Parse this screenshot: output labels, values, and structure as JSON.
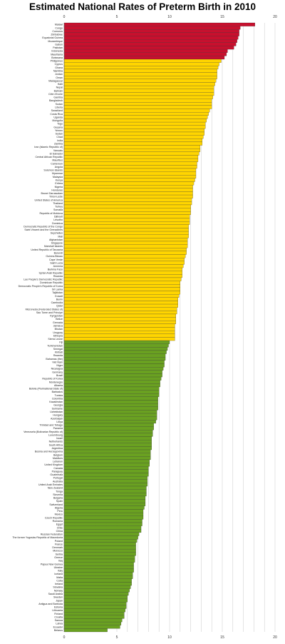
{
  "chart_data": {
    "type": "bar",
    "orientation": "horizontal",
    "title": "Estimated National Rates of Preterm Birth in 2010",
    "xlim": [
      0,
      20
    ],
    "xticks": [
      0,
      5,
      10,
      15,
      20
    ],
    "grid": true,
    "colors": {
      "high": "#c8102e",
      "medium": "#ffd500",
      "low": "#6aa121"
    },
    "categories": [
      "Malawi",
      "Congo",
      "Comoros",
      "Zimbabwe",
      "Equatorial Guinea",
      "Mozambique",
      "Gabon",
      "Pakistan",
      "Indonesia",
      "Mauritania",
      "Botswana",
      "Philippines",
      "Cyprus",
      "Ghana",
      "Namibia",
      "Jordan",
      "Oman",
      "Madagascar",
      "Haiti",
      "Nepal",
      "Bahrain",
      "Côte d'Ivoire",
      "Gambia",
      "Bangladesh",
      "Sudan",
      "Liberia",
      "Swaziland",
      "Costa Rica",
      "Uganda",
      "Mongolia",
      "Togo",
      "Guyana",
      "Yemen",
      "Sudan",
      "Chad",
      "India",
      "Zambia",
      "Iran (Islamic Republic of)",
      "Vanuatu",
      "El Salvador",
      "Central African Republic",
      "Mauritius",
      "Cameroon",
      "Angola",
      "Solomon Islands",
      "Myanmar",
      "Malaysia",
      "Kenya",
      "Eritrea",
      "Nigeria",
      "Honduras",
      "Brunei Darussalam",
      "Timor-Leste",
      "United States of America",
      "Thailand",
      "Turkey",
      "Somalia",
      "Republic of Moldova",
      "Djibouti",
      "Lesotho",
      "Dominica",
      "Democratic Republic of the Congo",
      "Saint Vincent and the Grenadines",
      "Seychelles",
      "Mali",
      "Afghanistan",
      "Singapore",
      "Marshall Islands",
      "United Republic of Tanzania",
      "Burundi",
      "Guinea-Bissau",
      "Cape Verde",
      "Saint Lucia",
      "Armenia",
      "Burkina Faso",
      "Syrian Arab Republic",
      "Rwanda",
      "Lao People's Democratic Republic",
      "Dominican Republic",
      "Democratic People's Republic of Korea",
      "Sri Lanka",
      "Tajikistan",
      "Kuwait",
      "Benin",
      "Cambodia",
      "Qatar",
      "Micronesia (Federated States of)",
      "Sao Tome and Principe",
      "Kyrgyzstan",
      "Belize",
      "Grenada",
      "Jamaica",
      "Bhutan",
      "Uruguay",
      "Ethiopia",
      "Sierra Leone",
      "Fiji",
      "Turkmenistan",
      "Senegal",
      "Kiribati",
      "Rwanda",
      "Bahamas (the)",
      "Viet Nam",
      "Niger",
      "Nicaragua",
      "Germany",
      "Brazil",
      "Republic of Korea",
      "Montenegro",
      "Albania",
      "Bolivia (Plurinational State of)",
      "Barbados",
      "Tunisia",
      "Colombia",
      "Kazakhstan",
      "Georgia",
      "Suriname",
      "Uzbekistan",
      "Hungary",
      "Azerbaijan",
      "Libya",
      "Trinidad and Tobago",
      "Panama",
      "Venezuela (Bolivarian Republic of)",
      "Luxembourg",
      "Israel",
      "Netherlands",
      "South Africa",
      "Argentina",
      "Bosnia and Herzegovina",
      "Belgium",
      "Maldives",
      "Lebanon",
      "United Kingdom",
      "Canada",
      "Paraguay",
      "Guatemala",
      "Portugal",
      "Australia",
      "United Arab Emirates",
      "New Zealand",
      "Tonga",
      "Slovenia",
      "Bulgaria",
      "Spain",
      "Switzerland",
      "Algeria",
      "Peru",
      "Mexico",
      "Czech Republic",
      "Romania",
      "Egypt",
      "Chile",
      "China",
      "Russian Federation",
      "The former Yugoslav Republic of Macedonia",
      "Poland",
      "France",
      "Denmark",
      "Morocco",
      "Serbia",
      "Greece",
      "Iraq",
      "Papua New Guinea",
      "Ukraine",
      "Italy",
      "Iceland",
      "Malta",
      "Cuba",
      "Ireland",
      "Slovakia",
      "Norway",
      "Saudi Arabia",
      "Sweden",
      "Japan",
      "Antigua and Barbuda",
      "Estonia",
      "Lithuania",
      "Finland",
      "Croatia",
      "Samoa",
      "Latvia",
      "Ecuador",
      "Belarus"
    ],
    "values": [
      18.1,
      16.7,
      16.6,
      16.6,
      16.5,
      16.4,
      16.3,
      16.1,
      15.5,
      15.4,
      15.2,
      14.9,
      14.7,
      14.6,
      14.5,
      14.5,
      14.5,
      14.4,
      14.3,
      14.2,
      14.2,
      14.2,
      14.1,
      14.0,
      14.0,
      14.0,
      13.8,
      13.7,
      13.6,
      13.5,
      13.4,
      13.4,
      13.3,
      13.3,
      13.2,
      13.1,
      13.1,
      12.9,
      12.9,
      12.8,
      12.7,
      12.7,
      12.6,
      12.6,
      12.5,
      12.5,
      12.5,
      12.4,
      12.3,
      12.2,
      12.2,
      12.2,
      12.2,
      12.1,
      12.1,
      12.0,
      12.0,
      12.0,
      11.9,
      11.9,
      11.9,
      11.8,
      11.8,
      11.8,
      11.8,
      11.7,
      11.7,
      11.7,
      11.6,
      11.6,
      11.5,
      11.4,
      11.4,
      11.3,
      11.2,
      11.2,
      11.2,
      11.1,
      11.0,
      11.0,
      11.0,
      11.0,
      10.9,
      10.8,
      10.8,
      10.8,
      10.7,
      10.7,
      10.6,
      10.6,
      10.6,
      10.5,
      10.5,
      10.5,
      10.5,
      10.5,
      10.0,
      9.9,
      9.8,
      9.7,
      9.6,
      9.6,
      9.5,
      9.5,
      9.4,
      9.3,
      9.3,
      9.2,
      9.1,
      9.1,
      9.0,
      9.0,
      9.0,
      8.9,
      8.9,
      8.9,
      8.9,
      8.8,
      8.8,
      8.8,
      8.7,
      8.5,
      8.5,
      8.4,
      8.4,
      8.3,
      8.3,
      8.3,
      8.3,
      8.2,
      8.2,
      8.2,
      8.1,
      8.1,
      8.0,
      8.0,
      8.0,
      7.9,
      7.9,
      7.9,
      7.8,
      7.8,
      7.8,
      7.7,
      7.7,
      7.7,
      7.6,
      7.5,
      7.5,
      7.5,
      7.4,
      7.4,
      7.3,
      7.3,
      7.1,
      7.0,
      6.9,
      6.8,
      6.8,
      6.8,
      6.8,
      6.7,
      6.7,
      6.6,
      6.6,
      6.6,
      6.5,
      6.5,
      6.4,
      6.4,
      6.3,
      6.2,
      6.1,
      6.0,
      6.0,
      5.9,
      5.9,
      5.8,
      5.7,
      5.7,
      5.5,
      5.4,
      5.3,
      4.1
    ]
  }
}
